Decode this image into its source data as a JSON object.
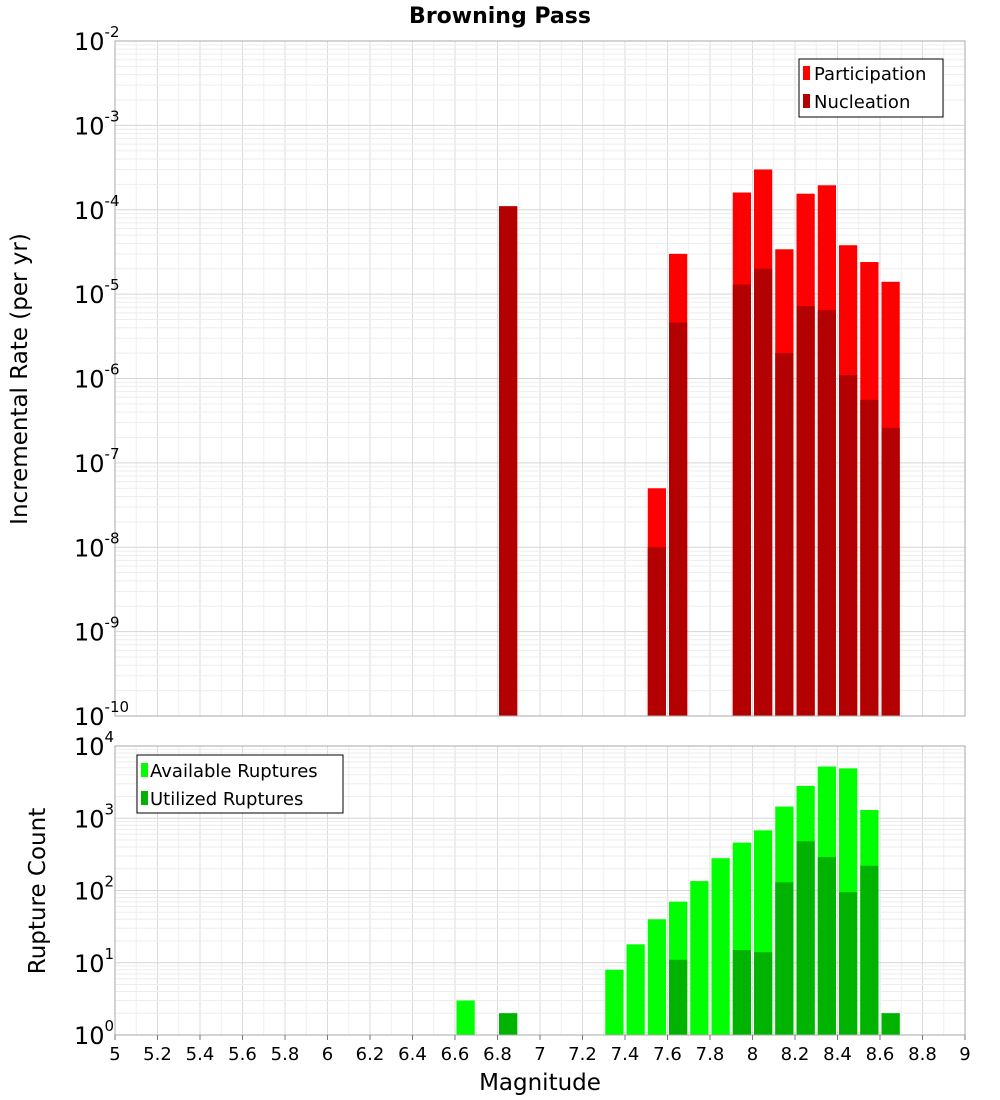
{
  "chart_data": [
    {
      "type": "bar",
      "title": "Browning Pass",
      "ylabel": "Incremental Rate (per yr)",
      "xlabel": "",
      "xlim": [
        5,
        9
      ],
      "ylim_exponents": [
        -10,
        -2
      ],
      "yscale": "log",
      "bin_width": 0.1,
      "legend_position": "top-right",
      "series": [
        {
          "name": "Participation",
          "color": "#ff0000",
          "points": [
            {
              "x": 6.85,
              "y": 0.00011
            },
            {
              "x": 7.55,
              "y": 5e-08
            },
            {
              "x": 7.65,
              "y": 3e-05
            },
            {
              "x": 7.95,
              "y": 0.00016
            },
            {
              "x": 8.05,
              "y": 0.0003
            },
            {
              "x": 8.15,
              "y": 3.4e-05
            },
            {
              "x": 8.25,
              "y": 0.000155
            },
            {
              "x": 8.35,
              "y": 0.000195
            },
            {
              "x": 8.45,
              "y": 3.8e-05
            },
            {
              "x": 8.55,
              "y": 2.4e-05
            },
            {
              "x": 8.65,
              "y": 1.4e-05
            }
          ]
        },
        {
          "name": "Nucleation",
          "color": "#b30000",
          "points": [
            {
              "x": 6.85,
              "y": 0.00011
            },
            {
              "x": 7.55,
              "y": 1e-08
            },
            {
              "x": 7.65,
              "y": 4.6e-06
            },
            {
              "x": 7.95,
              "y": 1.3e-05
            },
            {
              "x": 8.05,
              "y": 2e-05
            },
            {
              "x": 8.15,
              "y": 2e-06
            },
            {
              "x": 8.25,
              "y": 7.2e-06
            },
            {
              "x": 8.35,
              "y": 6.5e-06
            },
            {
              "x": 8.45,
              "y": 1.1e-06
            },
            {
              "x": 8.55,
              "y": 5.6e-07
            },
            {
              "x": 8.65,
              "y": 2.6e-07
            }
          ]
        }
      ]
    },
    {
      "type": "bar",
      "title": "",
      "ylabel": "Rupture Count",
      "xlabel": "Magnitude",
      "xlim": [
        5,
        9
      ],
      "ylim_exponents": [
        0,
        4
      ],
      "yscale": "log",
      "bin_width": 0.1,
      "legend_position": "top-left",
      "xticks": [
        "5",
        "5.2",
        "5.4",
        "5.6",
        "5.8",
        "6",
        "6.2",
        "6.4",
        "6.6",
        "6.8",
        "7",
        "7.2",
        "7.4",
        "7.6",
        "7.8",
        "8",
        "8.2",
        "8.4",
        "8.6",
        "8.8",
        "9"
      ],
      "series": [
        {
          "name": "Available Ruptures",
          "color": "#00ff00",
          "points": [
            {
              "x": 6.65,
              "y": 3
            },
            {
              "x": 6.85,
              "y": 2
            },
            {
              "x": 6.95,
              "y": 1
            },
            {
              "x": 7.25,
              "y": 1
            },
            {
              "x": 7.35,
              "y": 8
            },
            {
              "x": 7.45,
              "y": 18
            },
            {
              "x": 7.55,
              "y": 40
            },
            {
              "x": 7.65,
              "y": 70
            },
            {
              "x": 7.75,
              "y": 135
            },
            {
              "x": 7.85,
              "y": 280
            },
            {
              "x": 7.95,
              "y": 460
            },
            {
              "x": 8.05,
              "y": 680
            },
            {
              "x": 8.15,
              "y": 1450
            },
            {
              "x": 8.25,
              "y": 2800
            },
            {
              "x": 8.35,
              "y": 5200
            },
            {
              "x": 8.45,
              "y": 4900
            },
            {
              "x": 8.55,
              "y": 1300
            },
            {
              "x": 8.65,
              "y": 2
            }
          ]
        },
        {
          "name": "Utilized Ruptures",
          "color": "#00b300",
          "points": [
            {
              "x": 6.85,
              "y": 2
            },
            {
              "x": 6.95,
              "y": 1
            },
            {
              "x": 7.35,
              "y": 1
            },
            {
              "x": 7.55,
              "y": 1
            },
            {
              "x": 7.65,
              "y": 11
            },
            {
              "x": 7.95,
              "y": 15
            },
            {
              "x": 8.05,
              "y": 14
            },
            {
              "x": 8.15,
              "y": 130
            },
            {
              "x": 8.25,
              "y": 480
            },
            {
              "x": 8.35,
              "y": 290
            },
            {
              "x": 8.45,
              "y": 95
            },
            {
              "x": 8.55,
              "y": 220
            },
            {
              "x": 8.65,
              "y": 2
            }
          ]
        }
      ]
    }
  ]
}
